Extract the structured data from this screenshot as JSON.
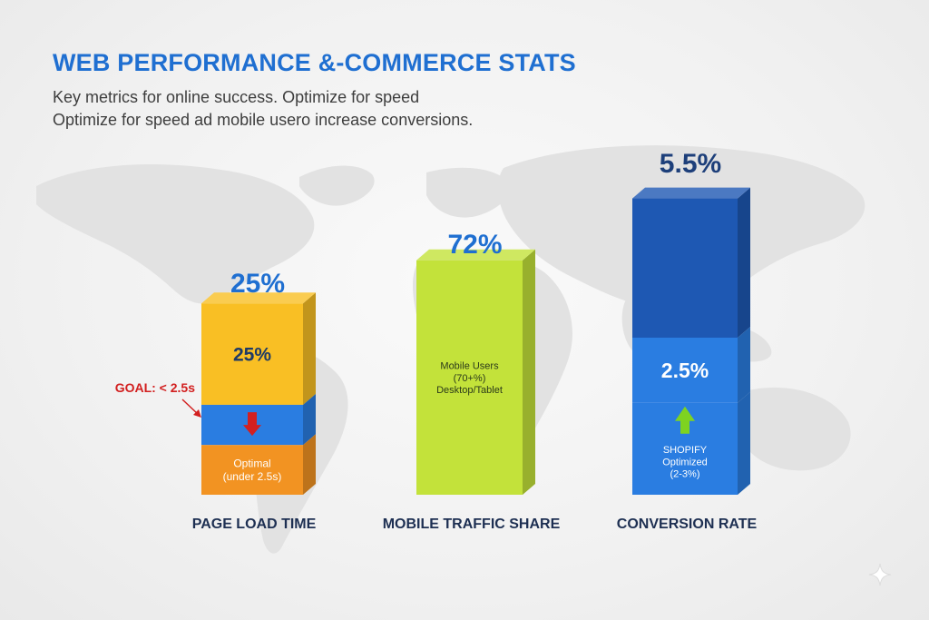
{
  "title": "WEB PERFORMANCE &-COMMERCE STATS",
  "subtitle_line1": "Key metrics for online success. Optimize for speed",
  "subtitle_line2": "Optimize for speed ad mobile usero increase conversions.",
  "colors": {
    "title": "#1f6fd1",
    "yellow": "#f9bf24",
    "blue": "#2a7de1",
    "orange": "#f29322",
    "lime": "#c3e23a",
    "navy": "#1e58b3",
    "goal_red": "#d22020",
    "arrow_green": "#7ed321"
  },
  "chart_data": {
    "type": "bar",
    "title": "WEB PERFORMANCE &-COMMERCE STATS",
    "categories": [
      "PAGE LOAD TIME",
      "MOBILE TRAFFIC SHARE",
      "CONVERSION RATE"
    ],
    "top_labels": [
      "25%",
      "72%",
      "5.5%"
    ],
    "values": [
      25,
      72,
      5.5
    ],
    "segments": [
      [
        {
          "label": "25%",
          "color": "yellow"
        },
        {
          "label": "",
          "color": "blue",
          "icon": "down-arrow-icon"
        },
        {
          "label": "Optimal (under 2.5s)",
          "color": "orange"
        }
      ],
      [
        {
          "label": "Mobile Users (70+%) Desktop/Tablet",
          "color": "lime"
        }
      ],
      [
        {
          "label": "",
          "color": "navy"
        },
        {
          "label": "2.5%",
          "color": "blue"
        },
        {
          "label": "SHOPIFY Optimized (2-3%)",
          "color": "blue",
          "icon": "up-arrow-icon"
        }
      ]
    ],
    "annotations": [
      {
        "text": "GOAL: < 2.5s",
        "target": "PAGE LOAD TIME"
      }
    ],
    "xlabel": "",
    "ylabel": ""
  }
}
